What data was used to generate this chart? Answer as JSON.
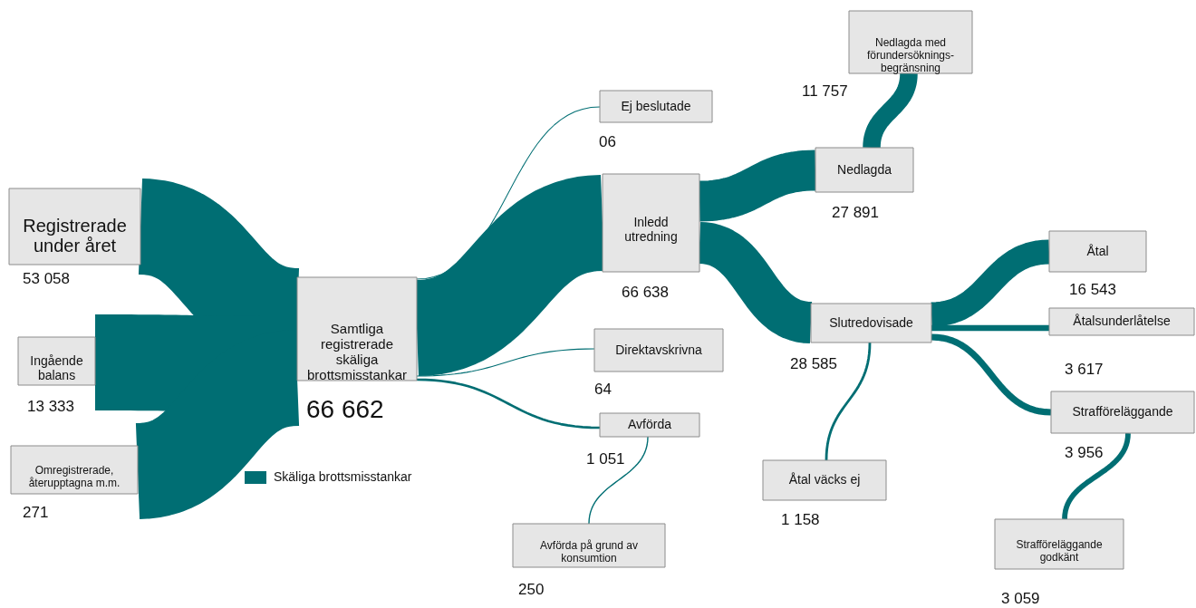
{
  "chart_data": {
    "type": "other",
    "categories": [
      "Registrerade\nunder året",
      "Ingående\nbalans",
      "Omregistrerade,\nåterupptagna m.m.",
      "Samtliga\nregistrerade\nskäliga\nbrottsmisstankar",
      "Ej beslutade",
      "Inledd\nutredning",
      "Direktavskrivna",
      "Avförda",
      "Avförda på grund av\nkonsumtion",
      "Nedlagda",
      "Nedlagda med\nförundersöknings-\nbegränsning",
      "Slutredovisade",
      "Åtal väcks ej",
      "Åtal",
      "Åtalsunderlåtelse",
      "Strafföreläggande",
      "Strafföreläggande\ngodkänt"
    ],
    "series": [
      {
        "name": "Skäliga brottsmisstankar",
        "color": "#006e73",
        "values": [
          53058,
          13333,
          271,
          66662,
          6,
          66638,
          64,
          1051,
          250,
          27891,
          11757,
          28585,
          1158,
          16543,
          3617,
          3956,
          3059
        ],
        "value_labels": [
          "53 058",
          "13 333",
          "271",
          "66 662",
          "06",
          "66 638",
          "64",
          "1 051",
          "250",
          "27 891",
          "11 757",
          "28 585",
          "1 158",
          "16 543",
          "3 617",
          "3 956",
          "3 059"
        ]
      }
    ],
    "legend": "left"
  }
}
